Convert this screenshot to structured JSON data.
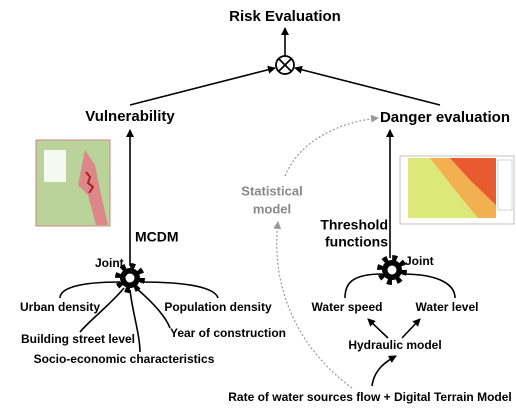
{
  "title": "Risk Evaluation",
  "vulnerability": {
    "label": "Vulnerability",
    "method": "MCDM",
    "joint": "Joint",
    "factors": [
      "Urban density",
      "Population density",
      "Building street level",
      "Year of construction",
      "Socio-economic characteristics"
    ]
  },
  "danger": {
    "label": "Danger evaluation",
    "threshold": [
      "Threshold",
      "functions"
    ],
    "joint": "Joint",
    "statistical": [
      "Statistical",
      "model"
    ],
    "inputs": [
      "Water speed",
      "Water level"
    ],
    "hydraulic": "Hydraulic model",
    "source": "Rate of water sources flow + Digital Terrain Model"
  }
}
